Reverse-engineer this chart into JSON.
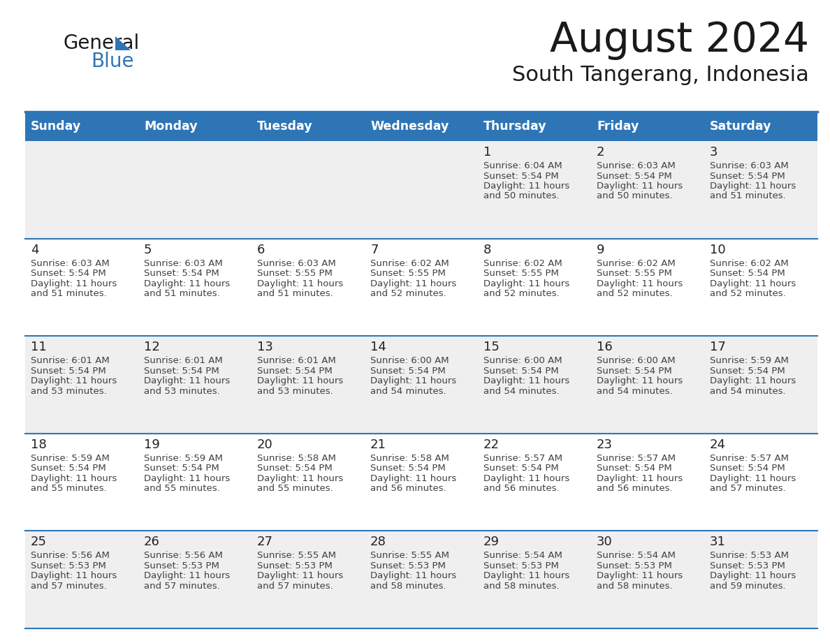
{
  "title": "August 2024",
  "subtitle": "South Tangerang, Indonesia",
  "days_of_week": [
    "Sunday",
    "Monday",
    "Tuesday",
    "Wednesday",
    "Thursday",
    "Friday",
    "Saturday"
  ],
  "header_bg": "#2E75B6",
  "header_text_color": "#FFFFFF",
  "cell_bg_week1": "#EFEFEF",
  "cell_bg_other": "#FFFFFF",
  "divider_color": "#2E75B6",
  "row_divider_color": "#2E75B6",
  "text_color": "#404040",
  "day_number_color": "#222222",
  "background_color": "#FFFFFF",
  "logo_text_color": "#1a1a1a",
  "logo_blue_color": "#2E75B6",
  "title_color": "#1a1a1a",
  "weeks": [
    {
      "bg": "#EFEFEF",
      "days": [
        {
          "day": null,
          "sunrise": null,
          "sunset": null,
          "daylight_line1": null,
          "daylight_line2": null
        },
        {
          "day": null,
          "sunrise": null,
          "sunset": null,
          "daylight_line1": null,
          "daylight_line2": null
        },
        {
          "day": null,
          "sunrise": null,
          "sunset": null,
          "daylight_line1": null,
          "daylight_line2": null
        },
        {
          "day": null,
          "sunrise": null,
          "sunset": null,
          "daylight_line1": null,
          "daylight_line2": null
        },
        {
          "day": 1,
          "sunrise": "6:04 AM",
          "sunset": "5:54 PM",
          "daylight_line1": "Daylight: 11 hours",
          "daylight_line2": "and 50 minutes."
        },
        {
          "day": 2,
          "sunrise": "6:03 AM",
          "sunset": "5:54 PM",
          "daylight_line1": "Daylight: 11 hours",
          "daylight_line2": "and 50 minutes."
        },
        {
          "day": 3,
          "sunrise": "6:03 AM",
          "sunset": "5:54 PM",
          "daylight_line1": "Daylight: 11 hours",
          "daylight_line2": "and 51 minutes."
        }
      ]
    },
    {
      "bg": "#FFFFFF",
      "days": [
        {
          "day": 4,
          "sunrise": "6:03 AM",
          "sunset": "5:54 PM",
          "daylight_line1": "Daylight: 11 hours",
          "daylight_line2": "and 51 minutes."
        },
        {
          "day": 5,
          "sunrise": "6:03 AM",
          "sunset": "5:54 PM",
          "daylight_line1": "Daylight: 11 hours",
          "daylight_line2": "and 51 minutes."
        },
        {
          "day": 6,
          "sunrise": "6:03 AM",
          "sunset": "5:55 PM",
          "daylight_line1": "Daylight: 11 hours",
          "daylight_line2": "and 51 minutes."
        },
        {
          "day": 7,
          "sunrise": "6:02 AM",
          "sunset": "5:55 PM",
          "daylight_line1": "Daylight: 11 hours",
          "daylight_line2": "and 52 minutes."
        },
        {
          "day": 8,
          "sunrise": "6:02 AM",
          "sunset": "5:55 PM",
          "daylight_line1": "Daylight: 11 hours",
          "daylight_line2": "and 52 minutes."
        },
        {
          "day": 9,
          "sunrise": "6:02 AM",
          "sunset": "5:55 PM",
          "daylight_line1": "Daylight: 11 hours",
          "daylight_line2": "and 52 minutes."
        },
        {
          "day": 10,
          "sunrise": "6:02 AM",
          "sunset": "5:54 PM",
          "daylight_line1": "Daylight: 11 hours",
          "daylight_line2": "and 52 minutes."
        }
      ]
    },
    {
      "bg": "#EFEFEF",
      "days": [
        {
          "day": 11,
          "sunrise": "6:01 AM",
          "sunset": "5:54 PM",
          "daylight_line1": "Daylight: 11 hours",
          "daylight_line2": "and 53 minutes."
        },
        {
          "day": 12,
          "sunrise": "6:01 AM",
          "sunset": "5:54 PM",
          "daylight_line1": "Daylight: 11 hours",
          "daylight_line2": "and 53 minutes."
        },
        {
          "day": 13,
          "sunrise": "6:01 AM",
          "sunset": "5:54 PM",
          "daylight_line1": "Daylight: 11 hours",
          "daylight_line2": "and 53 minutes."
        },
        {
          "day": 14,
          "sunrise": "6:00 AM",
          "sunset": "5:54 PM",
          "daylight_line1": "Daylight: 11 hours",
          "daylight_line2": "and 54 minutes."
        },
        {
          "day": 15,
          "sunrise": "6:00 AM",
          "sunset": "5:54 PM",
          "daylight_line1": "Daylight: 11 hours",
          "daylight_line2": "and 54 minutes."
        },
        {
          "day": 16,
          "sunrise": "6:00 AM",
          "sunset": "5:54 PM",
          "daylight_line1": "Daylight: 11 hours",
          "daylight_line2": "and 54 minutes."
        },
        {
          "day": 17,
          "sunrise": "5:59 AM",
          "sunset": "5:54 PM",
          "daylight_line1": "Daylight: 11 hours",
          "daylight_line2": "and 54 minutes."
        }
      ]
    },
    {
      "bg": "#FFFFFF",
      "days": [
        {
          "day": 18,
          "sunrise": "5:59 AM",
          "sunset": "5:54 PM",
          "daylight_line1": "Daylight: 11 hours",
          "daylight_line2": "and 55 minutes."
        },
        {
          "day": 19,
          "sunrise": "5:59 AM",
          "sunset": "5:54 PM",
          "daylight_line1": "Daylight: 11 hours",
          "daylight_line2": "and 55 minutes."
        },
        {
          "day": 20,
          "sunrise": "5:58 AM",
          "sunset": "5:54 PM",
          "daylight_line1": "Daylight: 11 hours",
          "daylight_line2": "and 55 minutes."
        },
        {
          "day": 21,
          "sunrise": "5:58 AM",
          "sunset": "5:54 PM",
          "daylight_line1": "Daylight: 11 hours",
          "daylight_line2": "and 56 minutes."
        },
        {
          "day": 22,
          "sunrise": "5:57 AM",
          "sunset": "5:54 PM",
          "daylight_line1": "Daylight: 11 hours",
          "daylight_line2": "and 56 minutes."
        },
        {
          "day": 23,
          "sunrise": "5:57 AM",
          "sunset": "5:54 PM",
          "daylight_line1": "Daylight: 11 hours",
          "daylight_line2": "and 56 minutes."
        },
        {
          "day": 24,
          "sunrise": "5:57 AM",
          "sunset": "5:54 PM",
          "daylight_line1": "Daylight: 11 hours",
          "daylight_line2": "and 57 minutes."
        }
      ]
    },
    {
      "bg": "#EFEFEF",
      "days": [
        {
          "day": 25,
          "sunrise": "5:56 AM",
          "sunset": "5:53 PM",
          "daylight_line1": "Daylight: 11 hours",
          "daylight_line2": "and 57 minutes."
        },
        {
          "day": 26,
          "sunrise": "5:56 AM",
          "sunset": "5:53 PM",
          "daylight_line1": "Daylight: 11 hours",
          "daylight_line2": "and 57 minutes."
        },
        {
          "day": 27,
          "sunrise": "5:55 AM",
          "sunset": "5:53 PM",
          "daylight_line1": "Daylight: 11 hours",
          "daylight_line2": "and 57 minutes."
        },
        {
          "day": 28,
          "sunrise": "5:55 AM",
          "sunset": "5:53 PM",
          "daylight_line1": "Daylight: 11 hours",
          "daylight_line2": "and 58 minutes."
        },
        {
          "day": 29,
          "sunrise": "5:54 AM",
          "sunset": "5:53 PM",
          "daylight_line1": "Daylight: 11 hours",
          "daylight_line2": "and 58 minutes."
        },
        {
          "day": 30,
          "sunrise": "5:54 AM",
          "sunset": "5:53 PM",
          "daylight_line1": "Daylight: 11 hours",
          "daylight_line2": "and 58 minutes."
        },
        {
          "day": 31,
          "sunrise": "5:53 AM",
          "sunset": "5:53 PM",
          "daylight_line1": "Daylight: 11 hours",
          "daylight_line2": "and 59 minutes."
        }
      ]
    }
  ]
}
